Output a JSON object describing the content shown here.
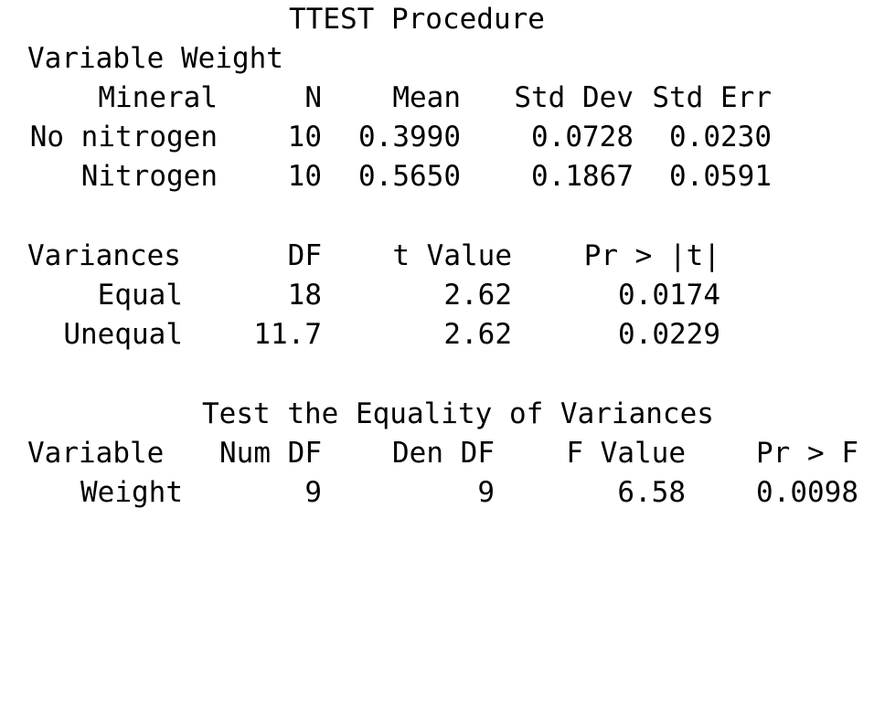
{
  "title": "TTEST Procedure",
  "variable_line": "Variable Weight",
  "stats_table": {
    "headers": [
      "Mineral",
      "N",
      "Mean",
      "Std Dev",
      "Std Err"
    ],
    "rows": [
      [
        "No nitrogen",
        "10",
        "0.3990",
        "0.0728",
        "0.0230"
      ],
      [
        "Nitrogen",
        "10",
        "0.5650",
        "0.1867",
        "0.0591"
      ]
    ]
  },
  "ttest_table": {
    "headers": [
      "Variances",
      "DF",
      "t Value",
      "Pr > |t|"
    ],
    "rows": [
      [
        "Equal",
        "18",
        "2.62",
        "0.0174"
      ],
      [
        "Unequal",
        "11.7",
        "2.62",
        "0.0229"
      ]
    ]
  },
  "equality_section": {
    "title": "Test the Equality of Variances",
    "headers": [
      "Variable",
      "Num DF",
      "Den DF",
      "F Value",
      "Pr > F"
    ],
    "rows": [
      [
        "Weight",
        "9",
        "9",
        "6.58",
        "0.0098"
      ]
    ]
  }
}
